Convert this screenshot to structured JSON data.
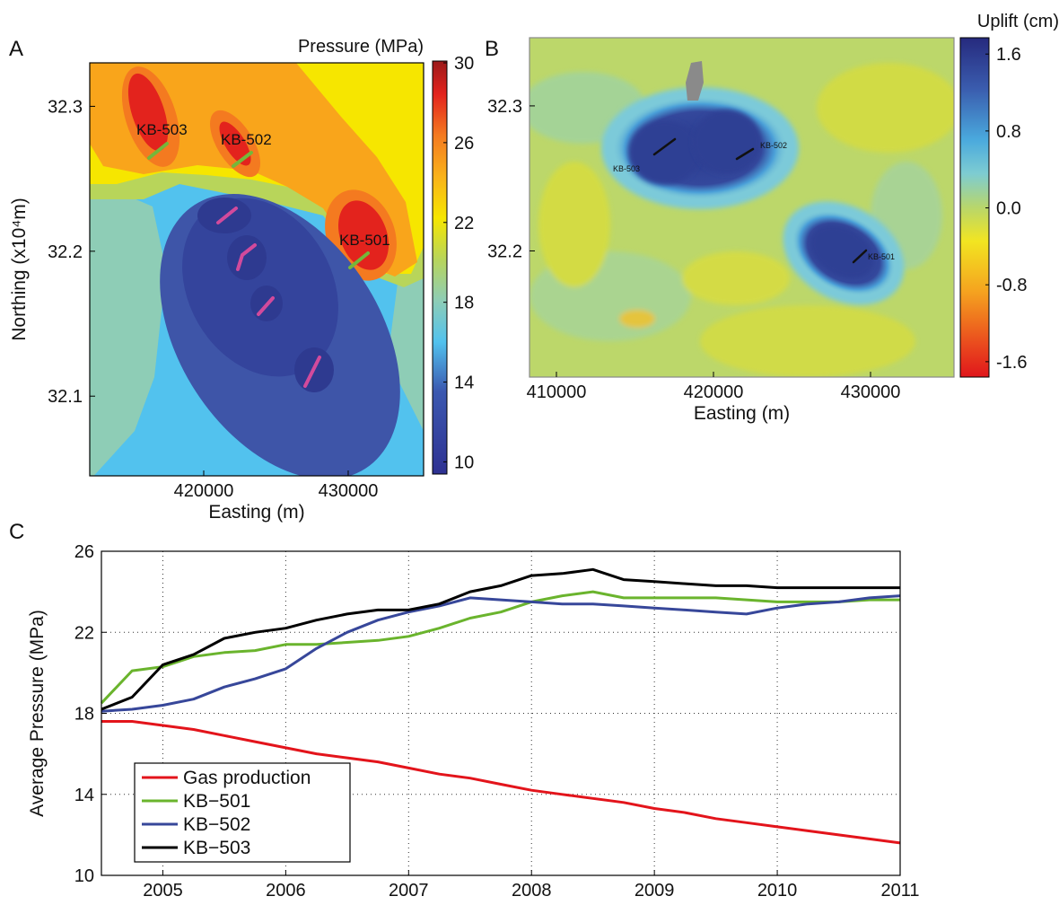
{
  "chart_data": [
    {
      "type": "contour",
      "panel": "A",
      "colorbar_title": "Pressure (MPa)",
      "xlabel": "Easting (m)",
      "ylabel": "Northing (x10⁴m)",
      "xlim": [
        412110,
        435220
      ],
      "xticks": [
        420000,
        430000
      ],
      "ylim": [
        32.045,
        32.33
      ],
      "yticks": [
        32.1,
        32.2,
        32.3
      ],
      "clim": [
        9.3,
        30
      ],
      "cticks": [
        10,
        14,
        18,
        22,
        26,
        30
      ],
      "annotations": [
        "KB-503",
        "KB-502",
        "KB-501"
      ]
    },
    {
      "type": "image",
      "panel": "B",
      "colorbar_title": "Uplift (cm)",
      "xlabel": "Easting (m)",
      "xlim": [
        408286,
        435314
      ],
      "xticks": [
        410000,
        420000,
        430000
      ],
      "ylim": [
        32.113,
        32.347
      ],
      "yticks": [
        32.2,
        32.3
      ],
      "clim": [
        -1.76,
        1.77
      ],
      "cticks": [
        -1.6,
        -0.8,
        {
          "value": 0,
          "label": "0.0"
        },
        0.8,
        1.6
      ],
      "annotations": [
        "KB-503",
        "KB-502",
        "KB-501"
      ]
    },
    {
      "type": "line",
      "panel": "C",
      "ylabel": "Average Pressure (MPa)",
      "xlim": [
        2004.5,
        2011
      ],
      "xticks": [
        2005,
        2006,
        2007,
        2008,
        2009,
        2010,
        2011
      ],
      "ylim": [
        10,
        26
      ],
      "yticks": [
        10,
        14,
        18,
        22,
        26
      ],
      "grid": true,
      "legend": "lower left",
      "x": [
        2004.5,
        2004.75,
        2005,
        2005.25,
        2005.5,
        2005.75,
        2006,
        2006.25,
        2006.5,
        2006.75,
        2007,
        2007.25,
        2007.5,
        2007.75,
        2008,
        2008.25,
        2008.5,
        2008.75,
        2009,
        2009.25,
        2009.5,
        2009.75,
        2010,
        2010.25,
        2010.5,
        2010.75,
        2011
      ],
      "series": [
        {
          "name": "Gas production",
          "color": "#e3141b",
          "values": [
            17.6,
            17.6,
            17.4,
            17.2,
            16.9,
            16.6,
            16.3,
            16.0,
            15.8,
            15.6,
            15.3,
            15.0,
            14.8,
            14.5,
            14.2,
            14.0,
            13.8,
            13.6,
            13.3,
            13.1,
            12.8,
            12.6,
            12.4,
            12.2,
            12.0,
            11.8,
            11.6
          ]
        },
        {
          "name": "KB−501",
          "color": "#6ab42d",
          "values": [
            18.5,
            20.1,
            20.3,
            20.8,
            21.0,
            21.1,
            21.4,
            21.4,
            21.5,
            21.6,
            21.8,
            22.2,
            22.7,
            23.0,
            23.5,
            23.8,
            24.0,
            23.7,
            23.7,
            23.7,
            23.7,
            23.6,
            23.5,
            23.5,
            23.5,
            23.6,
            23.6
          ]
        },
        {
          "name": "KB−502",
          "color": "#37479a",
          "values": [
            18.1,
            18.2,
            18.4,
            18.7,
            19.3,
            19.7,
            20.2,
            21.2,
            22.0,
            22.6,
            23.0,
            23.3,
            23.7,
            23.6,
            23.5,
            23.4,
            23.4,
            23.3,
            23.2,
            23.1,
            23.0,
            22.9,
            23.2,
            23.4,
            23.5,
            23.7,
            23.8
          ]
        },
        {
          "name": "KB−503",
          "color": "#000000",
          "values": [
            18.2,
            18.8,
            20.4,
            20.9,
            21.7,
            22.0,
            22.2,
            22.6,
            22.9,
            23.1,
            23.1,
            23.4,
            24.0,
            24.3,
            24.8,
            24.9,
            25.1,
            24.6,
            24.5,
            24.4,
            24.3,
            24.3,
            24.2,
            24.2,
            24.2,
            24.2,
            24.2
          ]
        }
      ]
    }
  ]
}
